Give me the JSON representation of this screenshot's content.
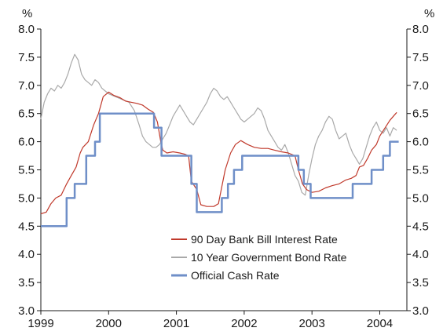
{
  "chart_data": {
    "type": "line",
    "y_unit_left": "%",
    "y_unit_right": "%",
    "ylim": [
      3.0,
      8.0
    ],
    "y_ticks": [
      "8.0",
      "7.5",
      "7.0",
      "6.5",
      "6.0",
      "5.5",
      "5.0",
      "4.5",
      "4.0",
      "3.5",
      "3.0"
    ],
    "xlim": [
      1999.0,
      2004.4
    ],
    "x_ticks": [
      "1999",
      "2000",
      "2001",
      "2002",
      "2003",
      "2004"
    ],
    "grid": false,
    "legend_position": "lower-middle",
    "legend": [
      "90 Day Bank Bill Interest Rate",
      "10 Year Government Bond Rate",
      "Official Cash Rate"
    ],
    "series": [
      {
        "name": "90 Day Bank Bill Interest Rate",
        "color": "#c0392b",
        "style": "line",
        "points": [
          [
            1999.0,
            4.72
          ],
          [
            1999.08,
            4.75
          ],
          [
            1999.15,
            4.9
          ],
          [
            1999.22,
            5.0
          ],
          [
            1999.3,
            5.05
          ],
          [
            1999.38,
            5.25
          ],
          [
            1999.45,
            5.4
          ],
          [
            1999.52,
            5.55
          ],
          [
            1999.58,
            5.8
          ],
          [
            1999.62,
            5.9
          ],
          [
            1999.7,
            6.0
          ],
          [
            1999.78,
            6.3
          ],
          [
            1999.85,
            6.5
          ],
          [
            1999.92,
            6.8
          ],
          [
            2000.0,
            6.88
          ],
          [
            2000.08,
            6.82
          ],
          [
            2000.17,
            6.78
          ],
          [
            2000.25,
            6.72
          ],
          [
            2000.33,
            6.7
          ],
          [
            2000.42,
            6.68
          ],
          [
            2000.5,
            6.65
          ],
          [
            2000.58,
            6.58
          ],
          [
            2000.66,
            6.52
          ],
          [
            2000.72,
            6.35
          ],
          [
            2000.77,
            6.0
          ],
          [
            2000.8,
            5.85
          ],
          [
            2000.86,
            5.8
          ],
          [
            2000.95,
            5.82
          ],
          [
            2001.05,
            5.8
          ],
          [
            2001.12,
            5.78
          ],
          [
            2001.18,
            5.75
          ],
          [
            2001.22,
            5.3
          ],
          [
            2001.3,
            5.15
          ],
          [
            2001.36,
            4.88
          ],
          [
            2001.45,
            4.85
          ],
          [
            2001.55,
            4.85
          ],
          [
            2001.62,
            4.9
          ],
          [
            2001.67,
            5.2
          ],
          [
            2001.72,
            5.5
          ],
          [
            2001.8,
            5.8
          ],
          [
            2001.87,
            5.95
          ],
          [
            2001.95,
            6.02
          ],
          [
            2002.05,
            5.95
          ],
          [
            2002.15,
            5.9
          ],
          [
            2002.25,
            5.88
          ],
          [
            2002.35,
            5.88
          ],
          [
            2002.45,
            5.85
          ],
          [
            2002.55,
            5.82
          ],
          [
            2002.65,
            5.8
          ],
          [
            2002.75,
            5.75
          ],
          [
            2002.8,
            5.5
          ],
          [
            2002.86,
            5.25
          ],
          [
            2002.92,
            5.15
          ],
          [
            2003.0,
            5.1
          ],
          [
            2003.1,
            5.12
          ],
          [
            2003.2,
            5.18
          ],
          [
            2003.3,
            5.22
          ],
          [
            2003.4,
            5.25
          ],
          [
            2003.5,
            5.32
          ],
          [
            2003.58,
            5.35
          ],
          [
            2003.65,
            5.4
          ],
          [
            2003.7,
            5.55
          ],
          [
            2003.76,
            5.58
          ],
          [
            2003.82,
            5.7
          ],
          [
            2003.88,
            5.85
          ],
          [
            2003.95,
            5.95
          ],
          [
            2004.0,
            6.1
          ],
          [
            2004.08,
            6.25
          ],
          [
            2004.15,
            6.38
          ],
          [
            2004.2,
            6.45
          ],
          [
            2004.25,
            6.52
          ]
        ]
      },
      {
        "name": "10 Year Government Bond Rate",
        "color": "#a9a9a9",
        "style": "line",
        "points": [
          [
            1999.0,
            6.4
          ],
          [
            1999.05,
            6.7
          ],
          [
            1999.1,
            6.85
          ],
          [
            1999.15,
            6.95
          ],
          [
            1999.2,
            6.9
          ],
          [
            1999.25,
            7.0
          ],
          [
            1999.3,
            6.95
          ],
          [
            1999.35,
            7.05
          ],
          [
            1999.4,
            7.2
          ],
          [
            1999.45,
            7.4
          ],
          [
            1999.5,
            7.55
          ],
          [
            1999.55,
            7.45
          ],
          [
            1999.6,
            7.2
          ],
          [
            1999.65,
            7.1
          ],
          [
            1999.7,
            7.05
          ],
          [
            1999.75,
            7.0
          ],
          [
            1999.8,
            7.1
          ],
          [
            1999.85,
            7.05
          ],
          [
            1999.9,
            6.95
          ],
          [
            1999.95,
            6.9
          ],
          [
            2000.0,
            6.85
          ],
          [
            2000.1,
            6.8
          ],
          [
            2000.2,
            6.75
          ],
          [
            2000.3,
            6.7
          ],
          [
            2000.38,
            6.55
          ],
          [
            2000.45,
            6.3
          ],
          [
            2000.5,
            6.1
          ],
          [
            2000.55,
            6.0
          ],
          [
            2000.6,
            5.95
          ],
          [
            2000.65,
            5.9
          ],
          [
            2000.7,
            5.9
          ],
          [
            2000.75,
            5.95
          ],
          [
            2000.8,
            6.05
          ],
          [
            2000.85,
            6.15
          ],
          [
            2000.9,
            6.3
          ],
          [
            2000.95,
            6.45
          ],
          [
            2001.0,
            6.55
          ],
          [
            2001.05,
            6.65
          ],
          [
            2001.1,
            6.55
          ],
          [
            2001.15,
            6.45
          ],
          [
            2001.2,
            6.35
          ],
          [
            2001.25,
            6.3
          ],
          [
            2001.3,
            6.4
          ],
          [
            2001.35,
            6.5
          ],
          [
            2001.4,
            6.6
          ],
          [
            2001.45,
            6.7
          ],
          [
            2001.5,
            6.85
          ],
          [
            2001.55,
            6.95
          ],
          [
            2001.6,
            6.9
          ],
          [
            2001.65,
            6.8
          ],
          [
            2001.7,
            6.75
          ],
          [
            2001.75,
            6.8
          ],
          [
            2001.8,
            6.7
          ],
          [
            2001.85,
            6.6
          ],
          [
            2001.9,
            6.5
          ],
          [
            2001.95,
            6.4
          ],
          [
            2002.0,
            6.35
          ],
          [
            2002.05,
            6.4
          ],
          [
            2002.1,
            6.45
          ],
          [
            2002.15,
            6.5
          ],
          [
            2002.2,
            6.6
          ],
          [
            2002.25,
            6.55
          ],
          [
            2002.3,
            6.4
          ],
          [
            2002.35,
            6.2
          ],
          [
            2002.4,
            6.1
          ],
          [
            2002.45,
            6.0
          ],
          [
            2002.5,
            5.9
          ],
          [
            2002.55,
            5.85
          ],
          [
            2002.6,
            5.95
          ],
          [
            2002.65,
            5.8
          ],
          [
            2002.7,
            5.6
          ],
          [
            2002.75,
            5.4
          ],
          [
            2002.8,
            5.3
          ],
          [
            2002.85,
            5.1
          ],
          [
            2002.9,
            5.05
          ],
          [
            2002.95,
            5.4
          ],
          [
            2003.0,
            5.7
          ],
          [
            2003.05,
            5.95
          ],
          [
            2003.1,
            6.1
          ],
          [
            2003.15,
            6.2
          ],
          [
            2003.2,
            6.35
          ],
          [
            2003.25,
            6.45
          ],
          [
            2003.3,
            6.4
          ],
          [
            2003.35,
            6.2
          ],
          [
            2003.4,
            6.05
          ],
          [
            2003.45,
            6.1
          ],
          [
            2003.5,
            6.15
          ],
          [
            2003.55,
            5.95
          ],
          [
            2003.6,
            5.8
          ],
          [
            2003.65,
            5.7
          ],
          [
            2003.7,
            5.6
          ],
          [
            2003.75,
            5.7
          ],
          [
            2003.8,
            5.9
          ],
          [
            2003.85,
            6.1
          ],
          [
            2003.9,
            6.25
          ],
          [
            2003.95,
            6.35
          ],
          [
            2004.0,
            6.2
          ],
          [
            2004.05,
            6.15
          ],
          [
            2004.1,
            6.25
          ],
          [
            2004.15,
            6.1
          ],
          [
            2004.2,
            6.25
          ],
          [
            2004.25,
            6.2
          ]
        ]
      },
      {
        "name": "Official Cash Rate",
        "color": "#6f8fc8",
        "style": "step",
        "points": [
          [
            1999.0,
            4.5
          ],
          [
            1999.38,
            5.0
          ],
          [
            1999.5,
            5.25
          ],
          [
            1999.67,
            5.75
          ],
          [
            1999.8,
            6.0
          ],
          [
            1999.87,
            6.5
          ],
          [
            2000.67,
            6.25
          ],
          [
            2000.78,
            5.75
          ],
          [
            2001.22,
            5.25
          ],
          [
            2001.3,
            4.75
          ],
          [
            2001.67,
            5.0
          ],
          [
            2001.76,
            5.25
          ],
          [
            2001.85,
            5.5
          ],
          [
            2001.97,
            5.75
          ],
          [
            2002.8,
            5.5
          ],
          [
            2002.88,
            5.25
          ],
          [
            2002.98,
            5.0
          ],
          [
            2003.6,
            5.25
          ],
          [
            2003.88,
            5.5
          ],
          [
            2004.05,
            5.75
          ],
          [
            2004.15,
            6.0
          ],
          [
            2004.28,
            6.0
          ]
        ]
      }
    ]
  }
}
